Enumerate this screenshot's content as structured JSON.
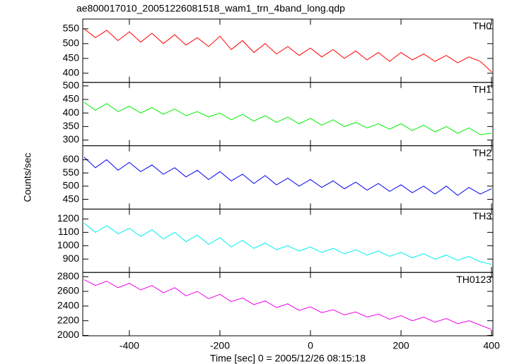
{
  "chart_data": [
    {
      "type": "line",
      "title": "ae800017010_20051226081518_wam1_trn_4band_long.qdp",
      "label": "TH0",
      "color": "#ff0000",
      "x": [
        -500,
        -475,
        -450,
        -425,
        -400,
        -375,
        -350,
        -325,
        -300,
        -275,
        -250,
        -225,
        -200,
        -175,
        -150,
        -125,
        -100,
        -75,
        -50,
        -25,
        0,
        25,
        50,
        75,
        100,
        125,
        150,
        175,
        200,
        225,
        250,
        275,
        300,
        325,
        350,
        375,
        400
      ],
      "values": [
        550,
        520,
        545,
        510,
        540,
        505,
        535,
        500,
        530,
        495,
        520,
        490,
        525,
        480,
        510,
        470,
        500,
        465,
        490,
        460,
        485,
        455,
        480,
        450,
        475,
        445,
        470,
        440,
        470,
        445,
        465,
        440,
        460,
        435,
        455,
        440,
        405
      ],
      "xlim": [
        -503,
        403
      ],
      "xticks": [
        -400,
        -200,
        0,
        200,
        400
      ],
      "ylim": [
        369,
        583
      ],
      "yticks": [
        400,
        450,
        500,
        550
      ]
    },
    {
      "type": "line",
      "label": "TH1",
      "color": "#00ee00",
      "x": [
        -500,
        -475,
        -450,
        -425,
        -400,
        -375,
        -350,
        -325,
        -300,
        -275,
        -250,
        -225,
        -200,
        -175,
        -150,
        -125,
        -100,
        -75,
        -50,
        -25,
        0,
        25,
        50,
        75,
        100,
        125,
        150,
        175,
        200,
        225,
        250,
        275,
        300,
        325,
        350,
        375,
        400
      ],
      "values": [
        440,
        410,
        435,
        405,
        425,
        400,
        420,
        395,
        415,
        390,
        405,
        385,
        400,
        375,
        395,
        370,
        390,
        365,
        385,
        360,
        380,
        355,
        375,
        350,
        365,
        345,
        360,
        340,
        360,
        335,
        355,
        330,
        350,
        325,
        345,
        320,
        325
      ],
      "xlim": [
        -503,
        403
      ],
      "xticks": [
        -400,
        -200,
        0,
        200,
        400
      ],
      "ylim": [
        279,
        513
      ],
      "yticks": [
        300,
        350,
        400,
        450,
        500
      ]
    },
    {
      "type": "line",
      "label": "TH2",
      "color": "#0000ee",
      "ylabel": "Counts/sec",
      "x": [
        -500,
        -475,
        -450,
        -425,
        -400,
        -375,
        -350,
        -325,
        -300,
        -275,
        -250,
        -225,
        -200,
        -175,
        -150,
        -125,
        -100,
        -75,
        -50,
        -25,
        0,
        25,
        50,
        75,
        100,
        125,
        150,
        175,
        200,
        225,
        250,
        275,
        300,
        325,
        350,
        375,
        400
      ],
      "values": [
        610,
        570,
        600,
        560,
        590,
        555,
        580,
        545,
        570,
        535,
        560,
        525,
        555,
        520,
        545,
        510,
        540,
        505,
        530,
        500,
        525,
        495,
        520,
        490,
        515,
        485,
        510,
        480,
        505,
        475,
        500,
        470,
        500,
        465,
        495,
        470,
        490
      ],
      "xlim": [
        -503,
        403
      ],
      "xticks": [
        -400,
        -200,
        0,
        200,
        400
      ],
      "ylim": [
        413,
        653
      ],
      "yticks": [
        450,
        500,
        550,
        600
      ]
    },
    {
      "type": "line",
      "label": "TH3",
      "color": "#00eeee",
      "x": [
        -500,
        -475,
        -450,
        -425,
        -400,
        -375,
        -350,
        -325,
        -300,
        -275,
        -250,
        -225,
        -200,
        -175,
        -150,
        -125,
        -100,
        -75,
        -50,
        -25,
        0,
        25,
        50,
        75,
        100,
        125,
        150,
        175,
        200,
        225,
        250,
        275,
        300,
        325,
        350,
        375,
        400
      ],
      "values": [
        1170,
        1100,
        1150,
        1090,
        1130,
        1070,
        1120,
        1050,
        1100,
        1030,
        1080,
        1010,
        1060,
        990,
        1040,
        980,
        1020,
        970,
        1000,
        960,
        990,
        950,
        980,
        940,
        970,
        930,
        960,
        920,
        950,
        910,
        940,
        900,
        930,
        890,
        920,
        880,
        860
      ],
      "xlim": [
        -503,
        403
      ],
      "xticks": [
        -400,
        -200,
        0,
        200,
        400
      ],
      "ylim": [
        800,
        1274
      ],
      "yticks": [
        900,
        1000,
        1100,
        1200
      ]
    },
    {
      "type": "line",
      "label": "TH0123",
      "color": "#ee00ee",
      "xlabel": "Time [sec] 0 = 2005/12/26 08:15:18",
      "x": [
        -500,
        -475,
        -450,
        -425,
        -400,
        -375,
        -350,
        -325,
        -300,
        -275,
        -250,
        -225,
        -200,
        -175,
        -150,
        -125,
        -100,
        -75,
        -50,
        -25,
        0,
        25,
        50,
        75,
        100,
        125,
        150,
        175,
        200,
        225,
        250,
        275,
        300,
        325,
        350,
        375,
        400
      ],
      "values": [
        2760,
        2680,
        2740,
        2650,
        2710,
        2620,
        2680,
        2580,
        2650,
        2540,
        2600,
        2500,
        2560,
        2460,
        2510,
        2420,
        2470,
        2380,
        2430,
        2340,
        2390,
        2310,
        2350,
        2280,
        2320,
        2250,
        2290,
        2220,
        2270,
        2200,
        2250,
        2180,
        2230,
        2160,
        2200,
        2140,
        2080
      ],
      "xlim": [
        -503,
        403
      ],
      "xticks": [
        -400,
        -200,
        0,
        200,
        400
      ],
      "ylim": [
        1995,
        2858
      ],
      "yticks": [
        2000,
        2200,
        2400,
        2600,
        2800
      ]
    }
  ]
}
